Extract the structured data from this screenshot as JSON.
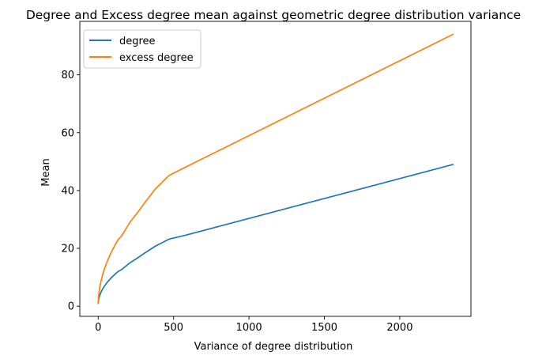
{
  "chart_data": {
    "type": "line",
    "title": "Degree and Excess degree mean against geometric degree distribution variance",
    "xlabel": "Variance of degree distribution",
    "ylabel": "Mean",
    "xlim": [
      -122,
      2472
    ],
    "ylim": [
      -3.5,
      98.5
    ],
    "xticks": [
      0,
      500,
      1000,
      1500,
      2000
    ],
    "yticks": [
      0,
      20,
      40,
      60,
      80
    ],
    "grid": false,
    "legend_position": "top-left",
    "series": [
      {
        "name": "degree",
        "color": "#1f77b4",
        "x": [
          0,
          2,
          6,
          12,
          20,
          30,
          42,
          56,
          72,
          90,
          110,
          132,
          156,
          182,
          210,
          240,
          256,
          300,
          380,
          470,
          576,
          2352
        ],
        "y": [
          1,
          2,
          3,
          4,
          5,
          6,
          7,
          8,
          9,
          10,
          11,
          12,
          12.7,
          13.8,
          15,
          16,
          16.5,
          18.1,
          20.8,
          23.2,
          24.5,
          49
        ]
      },
      {
        "name": "excess degree",
        "color": "#ff7f0e",
        "x": [
          0,
          2,
          6,
          12,
          20,
          30,
          42,
          56,
          72,
          90,
          110,
          132,
          156,
          182,
          210,
          240,
          256,
          300,
          380,
          470,
          576,
          2352
        ],
        "y": [
          1,
          3,
          5,
          7,
          9,
          11,
          13,
          15,
          17,
          19,
          21,
          23,
          24.4,
          26.6,
          29,
          31,
          32,
          35.2,
          40.6,
          45.2,
          48,
          94
        ]
      }
    ]
  }
}
